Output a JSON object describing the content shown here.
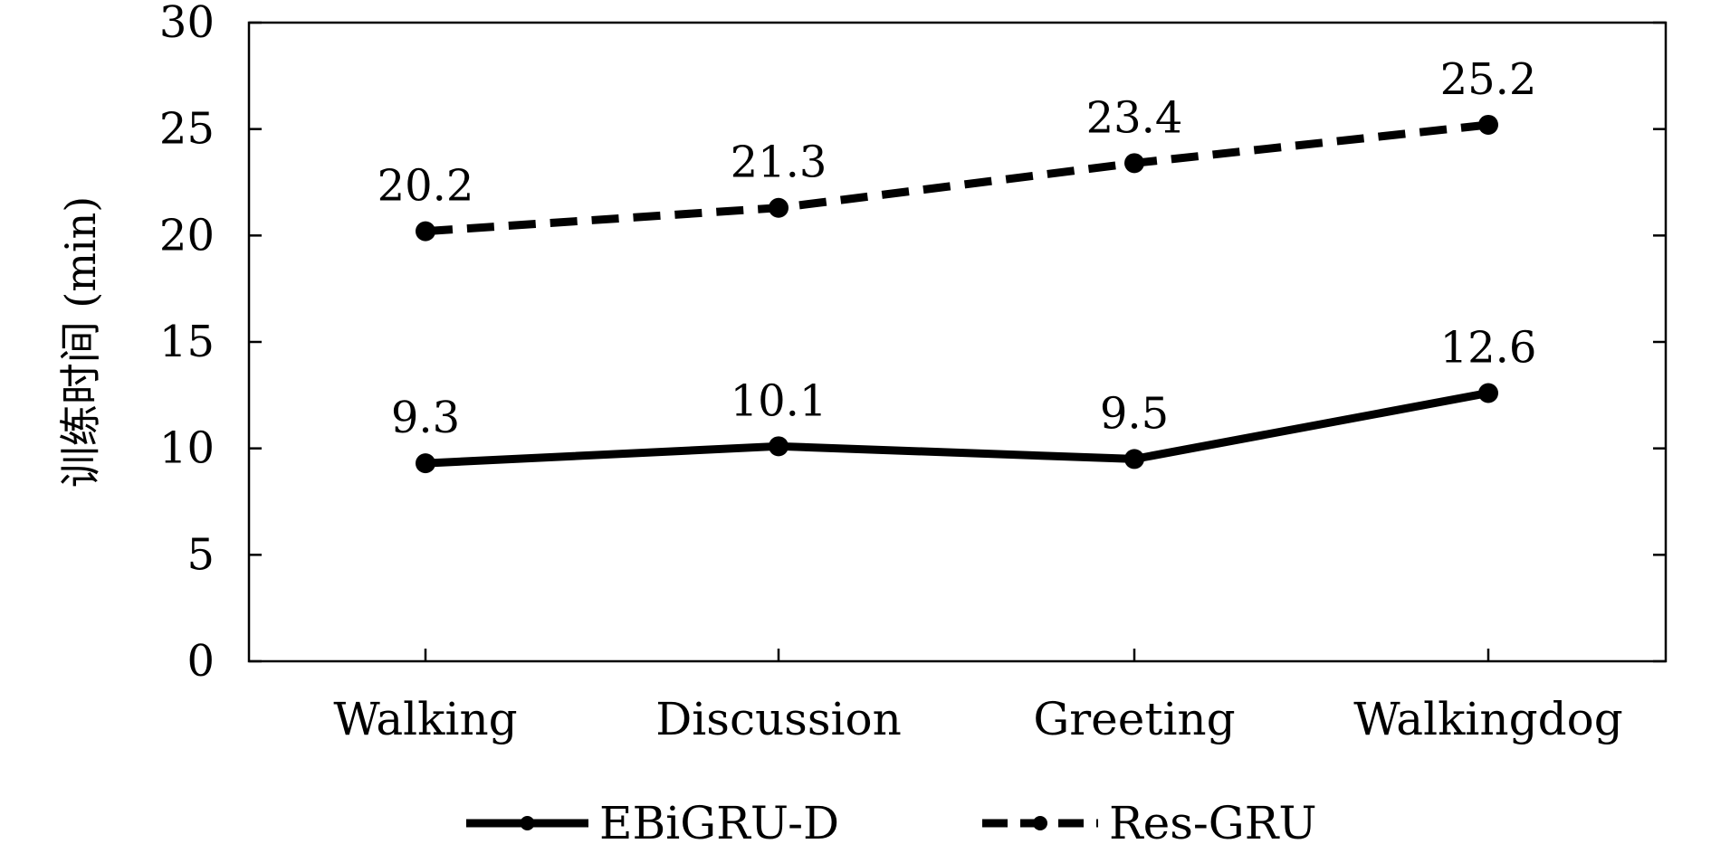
{
  "chart_data": {
    "type": "line",
    "categories": [
      "Walking",
      "Discussion",
      "Greeting",
      "Walkingdog"
    ],
    "series": [
      {
        "name": "EBiGRU-D",
        "values": [
          9.3,
          10.1,
          9.5,
          12.6
        ],
        "line_style": "solid",
        "color": "#000000"
      },
      {
        "name": "Res-GRU",
        "values": [
          20.2,
          21.3,
          23.4,
          25.2
        ],
        "line_style": "dashed",
        "color": "#000000"
      }
    ],
    "ylabel": "训练时间 (min)",
    "xlabel": "",
    "ylim": [
      0,
      30
    ],
    "yticks": [
      0,
      5,
      10,
      15,
      20,
      25,
      30
    ],
    "data_labels": true,
    "grid": false,
    "legend_position": "bottom"
  }
}
